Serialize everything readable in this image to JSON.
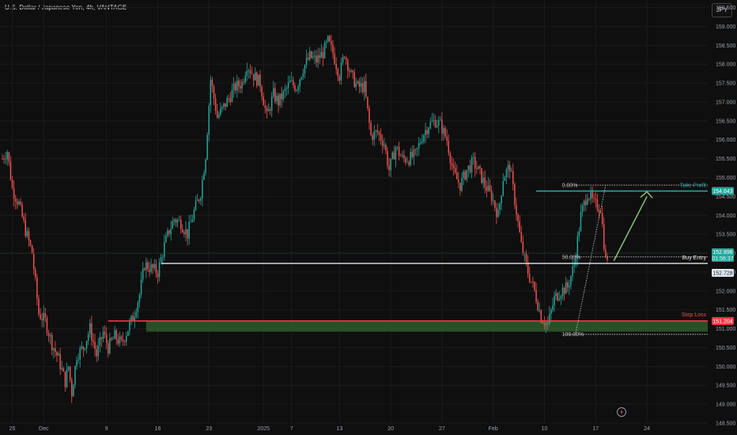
{
  "header": {
    "symbol_title": "U.S. Dollar / Japanese Yen, 4h, VANTAGE",
    "currency_button": "JPY"
  },
  "colors": {
    "bg": "#0f0f0f",
    "up": "#26a69a",
    "down": "#ef5350",
    "grid": "#1b1b1b",
    "axis_text": "#9aa0aa",
    "take_profit": "#26a69a",
    "entry": "#dfe6ee",
    "stop": "#f23645",
    "stop_zone": "#2f5a2a",
    "arrow": "#86c07a"
  },
  "chart_data": {
    "type": "candlestick",
    "title": "U.S. Dollar / Japanese Yen, 4h, VANTAGE",
    "ylim": [
      148.5,
      159.7
    ],
    "yticks": [
      148.5,
      149.0,
      149.5,
      150.0,
      150.5,
      151.0,
      151.5,
      152.0,
      152.5,
      153.0,
      153.5,
      154.0,
      154.5,
      155.0,
      155.5,
      156.0,
      156.5,
      157.0,
      157.5,
      158.0,
      158.5,
      159.0,
      159.5
    ],
    "ytick_labels": [
      "148.500",
      "149.000",
      "149.500",
      "150.000",
      "150.500",
      "151.000",
      "151.500",
      "152.000",
      "152.500",
      "153.000",
      "153.500",
      "154.000",
      "154.500",
      "155.000",
      "155.500",
      "156.000",
      "156.500",
      "157.000",
      "157.500",
      "158.000",
      "158.500",
      "159.000",
      "159.500"
    ],
    "xtick_labels": [
      {
        "label": "25",
        "bar": 6
      },
      {
        "label": "Dec",
        "bar": 25
      },
      {
        "label": "9",
        "bar": 63
      },
      {
        "label": "16",
        "bar": 94
      },
      {
        "label": "23",
        "bar": 125
      },
      {
        "label": "2025",
        "bar": 158
      },
      {
        "label": "7",
        "bar": 175
      },
      {
        "label": "13",
        "bar": 204
      },
      {
        "label": "20",
        "bar": 235
      },
      {
        "label": "27",
        "bar": 266
      },
      {
        "label": "Feb",
        "bar": 297
      },
      {
        "label": "10",
        "bar": 328
      },
      {
        "label": "17",
        "bar": 359
      },
      {
        "label": "24",
        "bar": 390
      }
    ],
    "bar_count": 410,
    "close_path": [
      [
        0,
        155.5
      ],
      [
        3,
        155.7
      ],
      [
        6,
        154.7
      ],
      [
        10,
        154.3
      ],
      [
        14,
        153.6
      ],
      [
        18,
        153.0
      ],
      [
        22,
        151.4
      ],
      [
        26,
        151.2
      ],
      [
        30,
        150.6
      ],
      [
        34,
        150.2
      ],
      [
        38,
        149.6
      ],
      [
        40,
        150.0
      ],
      [
        42,
        149.3
      ],
      [
        45,
        150.3
      ],
      [
        49,
        150.5
      ],
      [
        53,
        151.0
      ],
      [
        57,
        150.3
      ],
      [
        61,
        150.9
      ],
      [
        64,
        150.5
      ],
      [
        68,
        150.8
      ],
      [
        72,
        150.6
      ],
      [
        76,
        151.0
      ],
      [
        79,
        151.3
      ],
      [
        83,
        151.9
      ],
      [
        86,
        152.7
      ],
      [
        90,
        152.6
      ],
      [
        94,
        152.5
      ],
      [
        98,
        153.2
      ],
      [
        101,
        153.6
      ],
      [
        104,
        153.9
      ],
      [
        108,
        153.8
      ],
      [
        112,
        153.5
      ],
      [
        116,
        154.1
      ],
      [
        120,
        154.6
      ],
      [
        123,
        155.6
      ],
      [
        126,
        157.6
      ],
      [
        130,
        156.6
      ],
      [
        133,
        156.8
      ],
      [
        137,
        157.1
      ],
      [
        141,
        157.4
      ],
      [
        145,
        157.5
      ],
      [
        148,
        158.0
      ],
      [
        152,
        157.7
      ],
      [
        156,
        157.5
      ],
      [
        160,
        156.6
      ],
      [
        164,
        157.2
      ],
      [
        167,
        157.0
      ],
      [
        170,
        157.2
      ],
      [
        174,
        157.5
      ],
      [
        178,
        157.4
      ],
      [
        182,
        157.9
      ],
      [
        186,
        158.2
      ],
      [
        190,
        158.1
      ],
      [
        194,
        158.3
      ],
      [
        197,
        158.6
      ],
      [
        200,
        158.3
      ],
      [
        204,
        157.7
      ],
      [
        207,
        158.3
      ],
      [
        211,
        157.7
      ],
      [
        215,
        157.4
      ],
      [
        219,
        157.4
      ],
      [
        223,
        156.1
      ],
      [
        227,
        156.2
      ],
      [
        231,
        155.9
      ],
      [
        234,
        155.2
      ],
      [
        238,
        155.8
      ],
      [
        242,
        155.5
      ],
      [
        246,
        155.5
      ],
      [
        250,
        155.6
      ],
      [
        254,
        156.1
      ],
      [
        258,
        156.4
      ],
      [
        262,
        156.5
      ],
      [
        265,
        156.4
      ],
      [
        269,
        156.0
      ],
      [
        273,
        155.1
      ],
      [
        277,
        154.8
      ],
      [
        281,
        155.2
      ],
      [
        285,
        155.4
      ],
      [
        289,
        155.1
      ],
      [
        292,
        154.8
      ],
      [
        296,
        154.5
      ],
      [
        300,
        154.0
      ],
      [
        303,
        155.0
      ],
      [
        307,
        155.3
      ],
      [
        310,
        154.4
      ],
      [
        314,
        153.2
      ],
      [
        318,
        152.5
      ],
      [
        322,
        152.0
      ],
      [
        326,
        151.3
      ],
      [
        330,
        151.1
      ],
      [
        334,
        151.8
      ],
      [
        338,
        152.0
      ],
      [
        342,
        152.1
      ],
      [
        346,
        152.7
      ],
      [
        350,
        154.0
      ],
      [
        354,
        154.6
      ],
      [
        358,
        154.3
      ],
      [
        362,
        154.2
      ],
      [
        365,
        152.8
      ],
      [
        366,
        152.9
      ]
    ],
    "levels": {
      "take_profit": {
        "label": "Take Profit",
        "price": 154.643,
        "price_label": "154.643"
      },
      "buy_entry": {
        "label": "Buy Entry",
        "price": 152.728,
        "price_label": "152.728",
        "current_price": "152.898",
        "countdown": "01:56:37"
      },
      "stop_loss": {
        "label": "Stop Loss",
        "price": 151.204,
        "price_label": "151.204"
      }
    },
    "fib_labels": [
      {
        "label": "0.00%",
        "price": 154.8
      },
      {
        "label": "50.00%",
        "price": 152.9
      },
      {
        "label": "100.00%",
        "price": 150.85
      }
    ]
  }
}
